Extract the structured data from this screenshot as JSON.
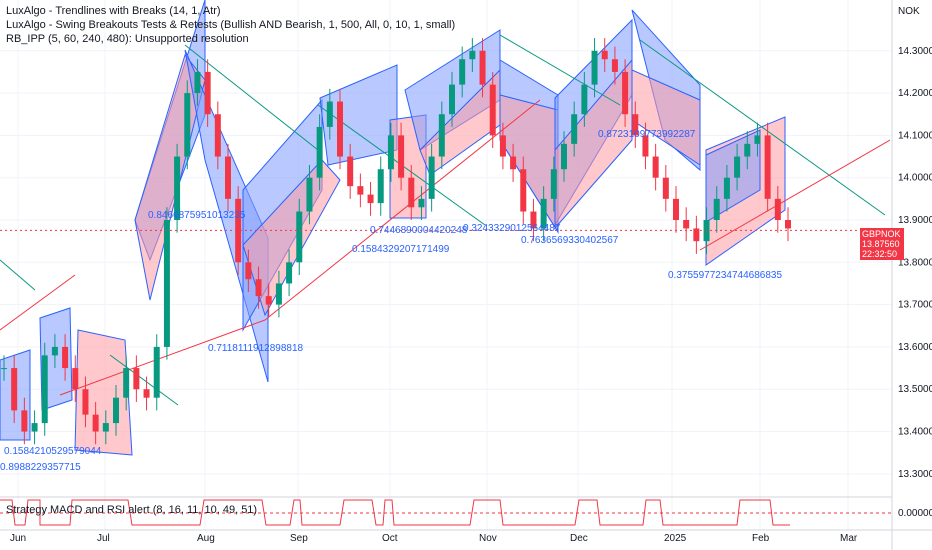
{
  "legend": {
    "line1": "LuxAlgo - Trendlines with Breaks (14, 1, Atr)",
    "line2": "LuxAlgo - Swing Breakouts Tests & Retests (Bullish AND Bearish, 1, 500, All, 0, 10, 1, small)",
    "line3": "RB_IPP (5, 60, 240, 480): Unsupported resolution"
  },
  "currency": "NOK",
  "symbol_tag": "GBPNOK",
  "last_price": "13.87560",
  "countdown": "22:32:50",
  "oscillator": {
    "label": "Strategy MACD and RSI alert (8, 16, 11, 10, 49, 51)",
    "value": "0.00000"
  },
  "colors": {
    "up": "#089981",
    "down": "#f23645",
    "blue_zone": "#2962ff",
    "red_zone": "#f23645"
  },
  "chart_data": {
    "type": "candlestick",
    "symbol": "GBPNOK",
    "y_ticks": [
      "14.30000",
      "14.20000",
      "14.10000",
      "14.00000",
      "13.90000",
      "13.80000",
      "13.70000",
      "13.60000",
      "13.50000",
      "13.40000",
      "13.30000"
    ],
    "ylim": [
      13.25,
      14.42
    ],
    "x_ticks": [
      "Jun",
      "Jul",
      "Aug",
      "Sep",
      "Oct",
      "Nov",
      "Dec",
      "2025",
      "Feb",
      "Mar"
    ],
    "level_labels": [
      "0.8466875951013235",
      "0.7446890004420248",
      "0.1584329207171499",
      "0.3243329012564487",
      "0.7636569330402567",
      "0.8723109773992287",
      "0.3755977234744686835",
      "0.7118111912898818",
      "0.1584210529579044",
      "0.8988229357715"
    ],
    "close_series": [
      13.55,
      13.45,
      13.4,
      13.42,
      13.58,
      13.6,
      13.55,
      13.5,
      13.44,
      13.4,
      13.42,
      13.48,
      13.55,
      13.5,
      13.48,
      13.6,
      13.9,
      14.05,
      14.2,
      14.25,
      14.15,
      14.05,
      13.95,
      13.8,
      13.76,
      13.72,
      13.7,
      13.75,
      13.8,
      13.92,
      14.0,
      14.12,
      14.18,
      14.05,
      13.98,
      13.96,
      13.94,
      14.02,
      14.1,
      14.0,
      13.93,
      13.95,
      14.05,
      14.15,
      14.22,
      14.28,
      14.3,
      14.22,
      14.1,
      14.05,
      14.02,
      13.92,
      13.88,
      13.95,
      14.02,
      14.08,
      14.15,
      14.22,
      14.3,
      14.28,
      14.25,
      14.15,
      14.1,
      14.05,
      14.0,
      13.95,
      13.9,
      13.88,
      13.85,
      13.9,
      13.95,
      14.0,
      14.05,
      14.08,
      14.1,
      13.95,
      13.9,
      13.88
    ]
  }
}
